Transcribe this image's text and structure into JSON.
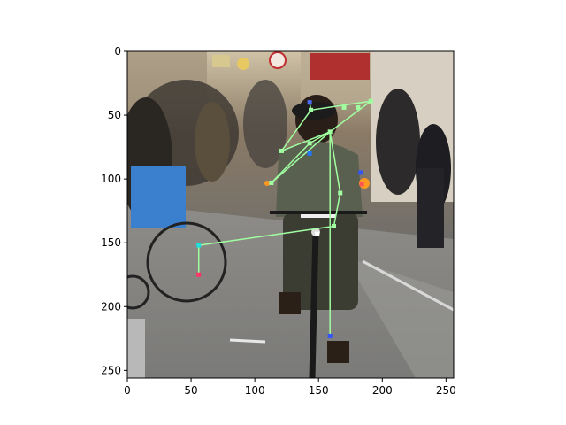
{
  "chart_data": {
    "type": "scatter",
    "title": "",
    "xlabel": "",
    "ylabel": "",
    "xlim": [
      0,
      256
    ],
    "ylim": [
      256,
      0
    ],
    "y_inverted": true,
    "grid": false,
    "legend": "none",
    "background_image": "street-scene-person-riding-bicycle",
    "xticks": [
      0,
      50,
      100,
      150,
      200,
      250
    ],
    "yticks": [
      0,
      50,
      100,
      150,
      200,
      250
    ],
    "keypoints": [
      {
        "name": "head-top-left",
        "x": 143,
        "y": 40,
        "color": "#4b6bff"
      },
      {
        "name": "head-right",
        "x": 191,
        "y": 39,
        "color": "#a0ffa0"
      },
      {
        "name": "neck-left",
        "x": 144,
        "y": 46,
        "color": "#a0ffa0"
      },
      {
        "name": "chin",
        "x": 170,
        "y": 44,
        "color": "#a0ffa0"
      },
      {
        "name": "jaw",
        "x": 181,
        "y": 44,
        "color": "#a0ffa0"
      },
      {
        "name": "shoulder",
        "x": 159,
        "y": 63,
        "color": "#a0ffa0"
      },
      {
        "name": "elbow-left",
        "x": 121,
        "y": 78,
        "color": "#a0ffa0"
      },
      {
        "name": "chest",
        "x": 143,
        "y": 72,
        "color": "#a0ffa0"
      },
      {
        "name": "wrist-left",
        "x": 113,
        "y": 103,
        "color": "#a0ffa0"
      },
      {
        "name": "hip",
        "x": 167,
        "y": 111,
        "color": "#a0ffa0"
      },
      {
        "name": "handlebar-right",
        "x": 162,
        "y": 137,
        "color": "#a0ffa0"
      },
      {
        "name": "shoulder-right",
        "x": 183,
        "y": 95,
        "color": "#3355ff"
      },
      {
        "name": "hand-right",
        "x": 184,
        "y": 104,
        "color": "#ff5555"
      },
      {
        "name": "knee-left",
        "x": 56,
        "y": 152,
        "color": "#22dddd"
      },
      {
        "name": "ankle-left",
        "x": 56,
        "y": 175,
        "color": "#ff3366"
      },
      {
        "name": "ankle-right",
        "x": 159,
        "y": 223,
        "color": "#3355ff"
      },
      {
        "name": "face-far-right",
        "x": 149,
        "y": 143,
        "color": "#ffffff"
      },
      {
        "name": "wrist-dot",
        "x": 143,
        "y": 80,
        "color": "#2277ff"
      }
    ],
    "skeleton_edges": [
      [
        "head-top-left",
        "neck-left"
      ],
      [
        "neck-left",
        "head-right"
      ],
      [
        "neck-left",
        "elbow-left"
      ],
      [
        "elbow-left",
        "shoulder"
      ],
      [
        "shoulder",
        "wrist-left"
      ],
      [
        "wrist-left",
        "chest"
      ],
      [
        "chest",
        "shoulder"
      ],
      [
        "shoulder",
        "hip"
      ],
      [
        "hip",
        "handlebar-right"
      ],
      [
        "shoulder",
        "ankle-right"
      ],
      [
        "handlebar-right",
        "knee-left"
      ],
      [
        "knee-left",
        "ankle-left"
      ],
      [
        "head-right",
        "shoulder"
      ]
    ],
    "skeleton_color": "#a0ffa0"
  }
}
